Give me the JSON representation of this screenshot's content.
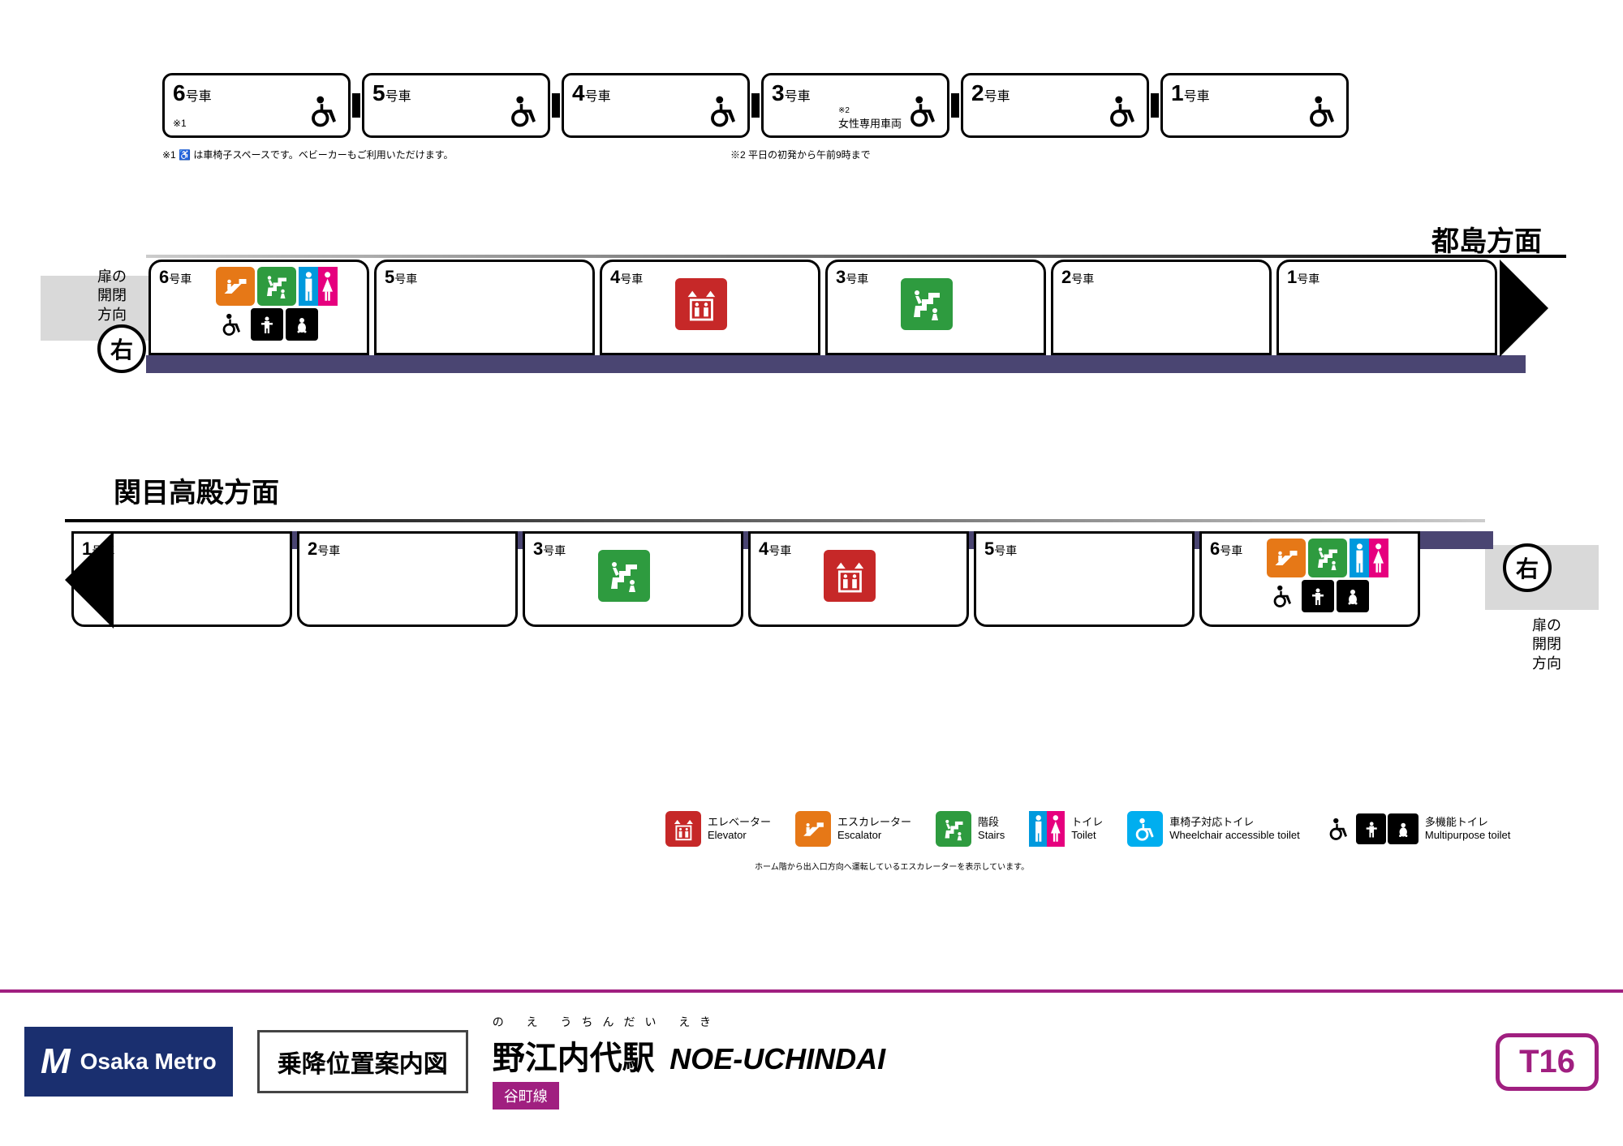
{
  "colors": {
    "purple_line": "#a01f80",
    "platform_purple": "#4a4572",
    "navy": "#1a2f6f",
    "elevator": "#c62828",
    "escalator": "#e67817",
    "stairs": "#2e9b3f",
    "toilet_m": "#0099dd",
    "toilet_f": "#e6007e",
    "wheelchair_toilet": "#00aeef"
  },
  "top_train": {
    "cars": [
      {
        "num": "6",
        "suffix": "号車",
        "note_mark": "※1"
      },
      {
        "num": "5",
        "suffix": "号車"
      },
      {
        "num": "4",
        "suffix": "号車"
      },
      {
        "num": "3",
        "suffix": "号車",
        "women_only_mark": "※2",
        "women_only": "女性専用車両"
      },
      {
        "num": "2",
        "suffix": "号車"
      },
      {
        "num": "1",
        "suffix": "号車"
      }
    ],
    "note1": "※1 ♿ は車椅子スペースです。ベビーカーもご利用いただけます。",
    "note2": "※2 平日の初発から午前9時まで"
  },
  "directions": {
    "dir1": "都島方面",
    "dir2": "関目高殿方面"
  },
  "door_label": "扉の開閉方向",
  "side_char": "右",
  "platform1": {
    "cars": [
      {
        "num": "6",
        "suffix": "号車",
        "icons": [
          "escalator",
          "stairs",
          "toilet",
          "wheelchair",
          "accessible",
          "baby"
        ]
      },
      {
        "num": "5",
        "suffix": "号車",
        "icons": []
      },
      {
        "num": "4",
        "suffix": "号車",
        "icons": [
          "elevator"
        ]
      },
      {
        "num": "3",
        "suffix": "号車",
        "icons": [
          "stairs"
        ]
      },
      {
        "num": "2",
        "suffix": "号車",
        "icons": []
      },
      {
        "num": "1",
        "suffix": "号車",
        "icons": []
      }
    ]
  },
  "platform2": {
    "cars": [
      {
        "num": "6",
        "suffix": "号車",
        "icons": [
          "escalator",
          "stairs",
          "toilet",
          "wheelchair",
          "accessible",
          "baby"
        ]
      },
      {
        "num": "5",
        "suffix": "号車",
        "icons": []
      },
      {
        "num": "4",
        "suffix": "号車",
        "icons": [
          "elevator"
        ]
      },
      {
        "num": "3",
        "suffix": "号車",
        "icons": [
          "stairs"
        ]
      },
      {
        "num": "2",
        "suffix": "号車",
        "icons": []
      },
      {
        "num": "1",
        "suffix": "号車",
        "icons": []
      }
    ]
  },
  "legend": [
    {
      "icon": "elevator",
      "jp": "エレベーター",
      "en": "Elevator"
    },
    {
      "icon": "escalator",
      "jp": "エスカレーター",
      "en": "Escalator"
    },
    {
      "icon": "stairs",
      "jp": "階段",
      "en": "Stairs"
    },
    {
      "icon": "toilet",
      "jp": "トイレ",
      "en": "Toilet"
    },
    {
      "icon": "wheelchair_toilet",
      "jp": "車椅子対応トイレ",
      "en": "Wheelchair accessible toilet"
    },
    {
      "icon": "multipurpose",
      "jp": "多機能トイレ",
      "en": "Multipurpose toilet"
    }
  ],
  "legend_note": "ホーム階から出入口方向へ運転しているエスカレーターを表示しています。",
  "footer": {
    "brand": "Osaka Metro",
    "title": "乗降位置案内図",
    "ruby": "の え うちんだい えき",
    "station_jp": "野江内代駅",
    "station_en": "NOE-UCHINDAI",
    "line_name": "谷町線",
    "code": "T16"
  }
}
